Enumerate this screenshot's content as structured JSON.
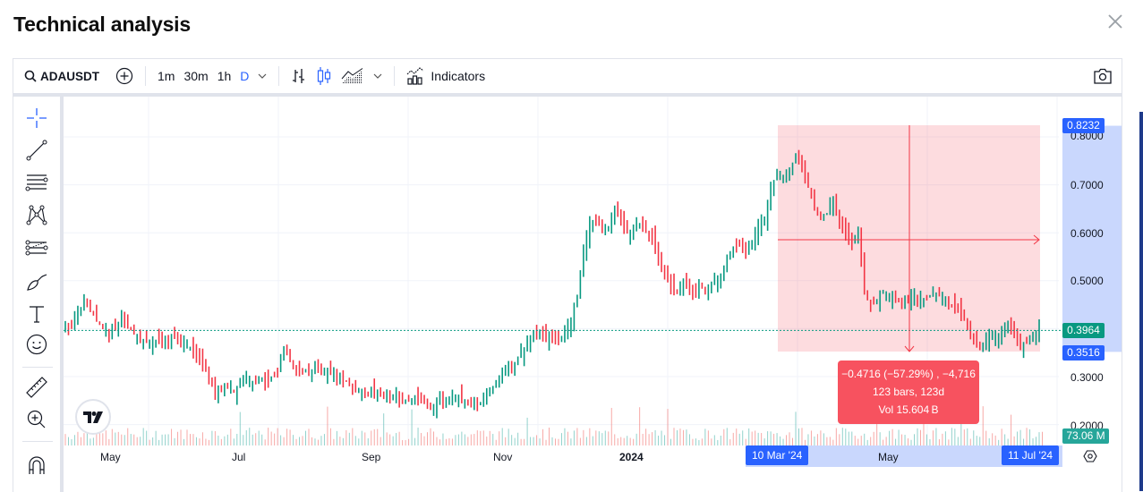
{
  "header": {
    "title": "Technical analysis",
    "close_icon": "close-icon"
  },
  "toolbar": {
    "symbol": "ADAUSDT",
    "timeframes": [
      "1m",
      "30m",
      "1h",
      "D"
    ],
    "active_timeframe": "D",
    "indicators_label": "Indicators"
  },
  "left_tools": [
    "crosshair-icon",
    "trend-line-icon",
    "fib-retracement-icon",
    "pattern-icon",
    "prediction-icon",
    "brush-icon",
    "text-icon",
    "emoji-icon",
    "ruler-icon",
    "zoom-in-icon",
    "magnet-icon"
  ],
  "price_axis": {
    "ticks": [
      "0.8000",
      "0.7000",
      "0.6000",
      "0.5000",
      "0.3000",
      "0.2000"
    ],
    "badges": {
      "high": {
        "value": "0.8232",
        "color": "#2962ff"
      },
      "last": {
        "value": "0.3964",
        "color": "#089981"
      },
      "low": {
        "value": "0.3516",
        "color": "#2962ff"
      },
      "volume": {
        "value": "73.06 M",
        "color": "#26a69a"
      }
    }
  },
  "time_axis": {
    "labels": [
      "May",
      "Jul",
      "Sep",
      "Nov",
      "2024",
      "May"
    ],
    "range_start": "10 Mar '24",
    "range_end": "11 Jul '24"
  },
  "measure": {
    "line1": "−0.4716 (−57.29%) , −4,716",
    "line2": "123 bars, 123d",
    "line3": "Vol 15.604 B",
    "color": "#f7525f"
  },
  "chart_data": {
    "type": "bar",
    "title": "ADAUSDT Daily",
    "up_color": "#089981",
    "down_color": "#f23645",
    "ylim": [
      0.17,
      0.85
    ],
    "closes": [
      0.4,
      0.41,
      0.43,
      0.46,
      0.44,
      0.42,
      0.4,
      0.39,
      0.4,
      0.42,
      0.41,
      0.39,
      0.38,
      0.37,
      0.37,
      0.38,
      0.37,
      0.38,
      0.38,
      0.37,
      0.36,
      0.34,
      0.33,
      0.3,
      0.26,
      0.27,
      0.28,
      0.27,
      0.29,
      0.3,
      0.29,
      0.3,
      0.29,
      0.3,
      0.3,
      0.36,
      0.33,
      0.32,
      0.31,
      0.31,
      0.32,
      0.31,
      0.31,
      0.3,
      0.3,
      0.29,
      0.28,
      0.27,
      0.26,
      0.27,
      0.27,
      0.26,
      0.26,
      0.26,
      0.25,
      0.25,
      0.25,
      0.25,
      0.24,
      0.24,
      0.25,
      0.25,
      0.26,
      0.26,
      0.25,
      0.25,
      0.24,
      0.25,
      0.27,
      0.29,
      0.31,
      0.32,
      0.33,
      0.35,
      0.37,
      0.38,
      0.39,
      0.38,
      0.38,
      0.38,
      0.39,
      0.42,
      0.47,
      0.56,
      0.62,
      0.63,
      0.6,
      0.61,
      0.65,
      0.63,
      0.6,
      0.61,
      0.62,
      0.6,
      0.59,
      0.55,
      0.52,
      0.49,
      0.48,
      0.5,
      0.47,
      0.48,
      0.49,
      0.48,
      0.5,
      0.51,
      0.55,
      0.57,
      0.58,
      0.56,
      0.58,
      0.61,
      0.63,
      0.7,
      0.72,
      0.71,
      0.73,
      0.76,
      0.74,
      0.7,
      0.66,
      0.63,
      0.64,
      0.67,
      0.62,
      0.6,
      0.58,
      0.61,
      0.48,
      0.45,
      0.46,
      0.48,
      0.47,
      0.46,
      0.45,
      0.46,
      0.47,
      0.46,
      0.46,
      0.48,
      0.47,
      0.46,
      0.45,
      0.44,
      0.42,
      0.38,
      0.37,
      0.37,
      0.38,
      0.38,
      0.39,
      0.41,
      0.39,
      0.36,
      0.37,
      0.38,
      0.4
    ]
  }
}
